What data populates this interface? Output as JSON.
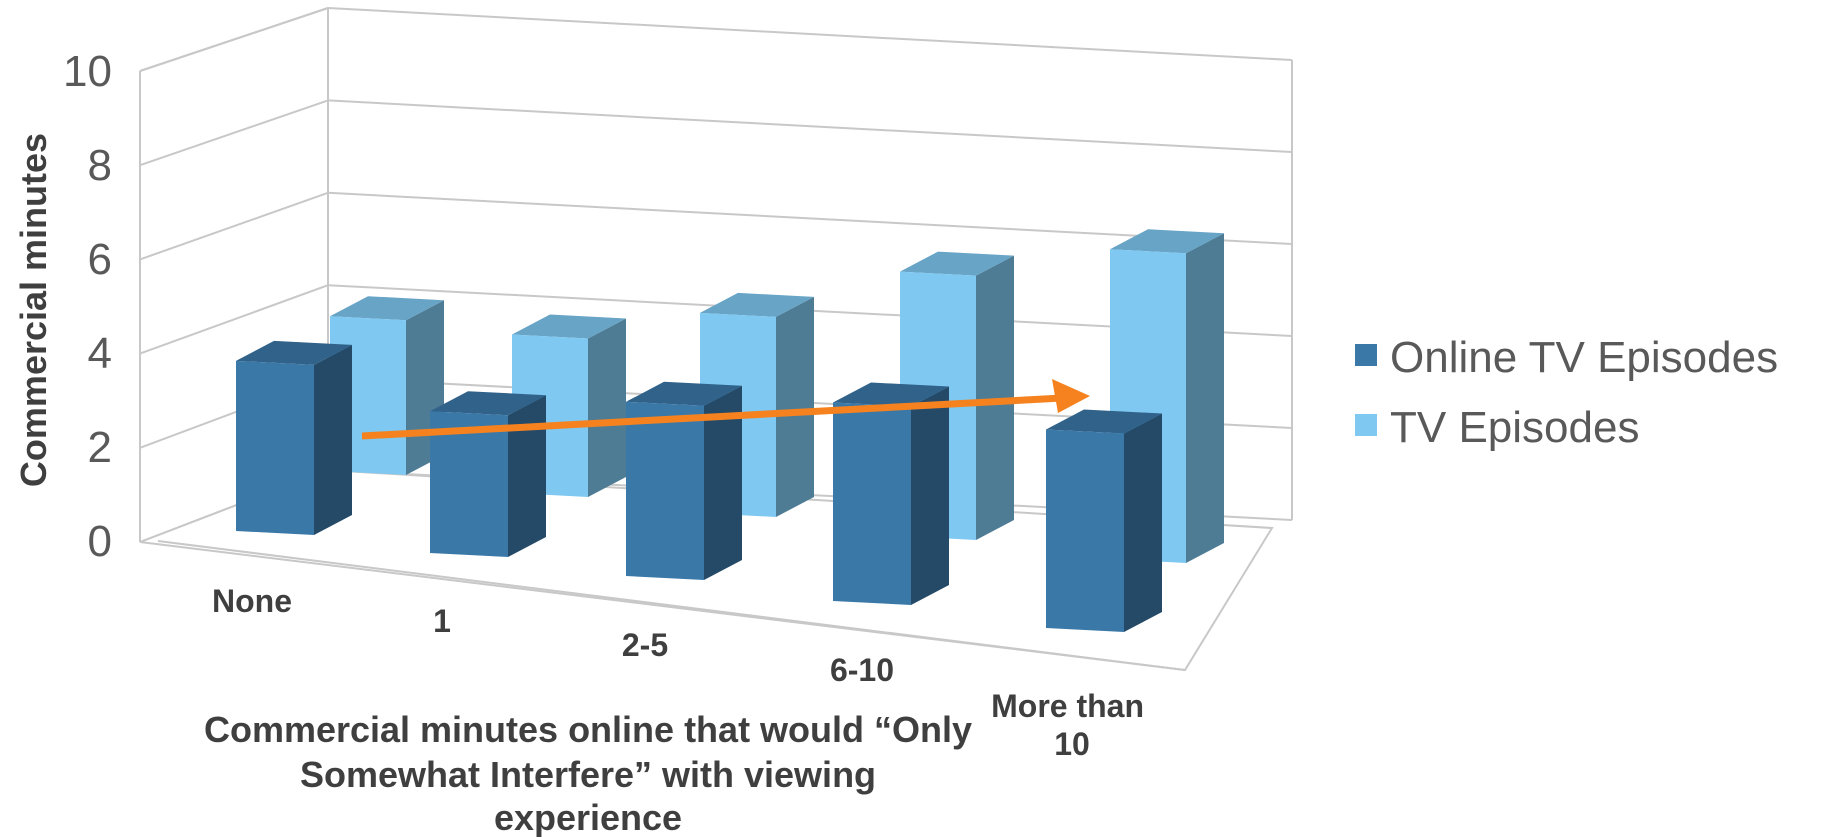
{
  "chart_data": {
    "type": "bar",
    "style": "3d-clustered-column",
    "categories": [
      "None",
      "1",
      "2-5",
      "6-10",
      "More than 10"
    ],
    "series": [
      {
        "name": "Online TV Episodes",
        "values": [
          4.3,
          3.6,
          4.4,
          5.0,
          5.0
        ],
        "color": "#3a78a8"
      },
      {
        "name": "TV Episodes",
        "values": [
          4.2,
          4.3,
          5.4,
          7.1,
          8.3
        ],
        "color": "#7ec8f1"
      }
    ],
    "ylabel": "Commercial minutes",
    "xlabel": "Commercial minutes online that would “Only Somewhat Interfere” with viewing experience",
    "ylim": [
      0,
      10
    ],
    "yticks": [
      "0",
      "2",
      "4",
      "6",
      "8",
      "10"
    ],
    "grid": true,
    "legend_position": "right",
    "annotation": {
      "type": "trend-arrow",
      "color": "#f5821f",
      "from_category": "None",
      "to_category": "More than 10"
    }
  }
}
